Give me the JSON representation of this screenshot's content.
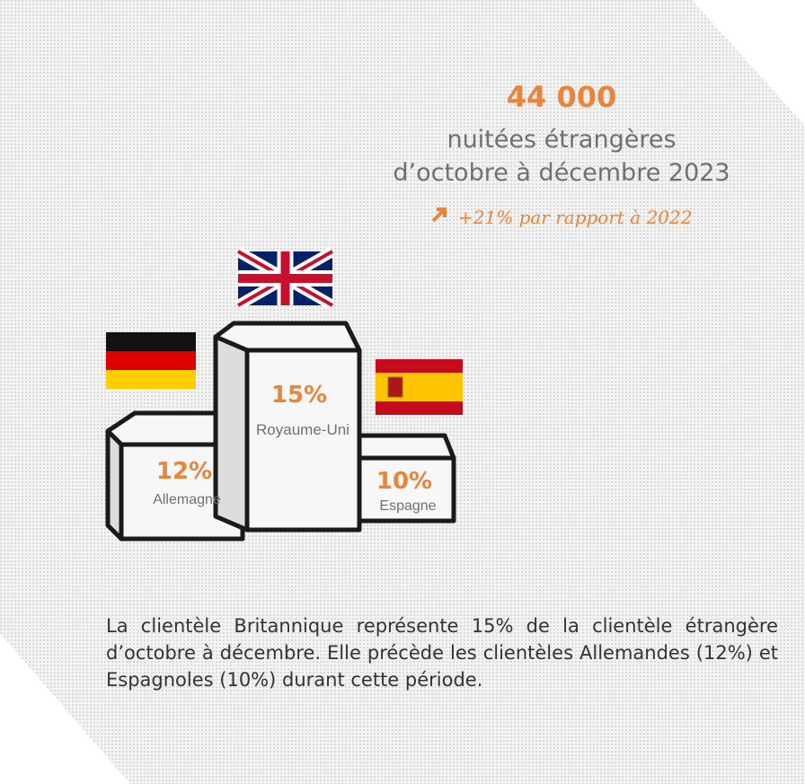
{
  "headline": {
    "value": "44 000",
    "line1": "nuitées étrangères",
    "line2": "d’octobre à décembre 2023",
    "trend": "+21% par rapport à 2022"
  },
  "podium": [
    {
      "share": "15%",
      "country": "Royaume-Uni"
    },
    {
      "share": "12%",
      "country": "Allemagne"
    },
    {
      "share": "10%",
      "country": "Espagne"
    }
  ],
  "paragraph": "La clientèle Britannique représente 15% de la clientèle étrangère d’octobre à décembre. Elle précède les clientèles Allemandes (12%) et Espagnoles (10%) durant cette période."
}
